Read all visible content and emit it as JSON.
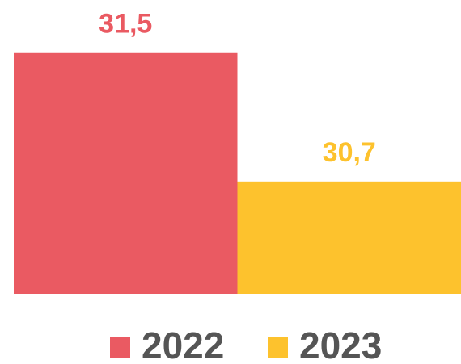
{
  "chart_data": {
    "type": "bar",
    "categories": [
      null
    ],
    "series": [
      {
        "name": "2022",
        "color": "#ea5a62",
        "values": [
          31.5
        ],
        "value_labels": [
          "31,5"
        ]
      },
      {
        "name": "2023",
        "color": "#fdc22d",
        "values": [
          30.7
        ],
        "value_labels": [
          "30,7"
        ]
      }
    ],
    "ylim": [
      30,
      31.7
    ]
  }
}
